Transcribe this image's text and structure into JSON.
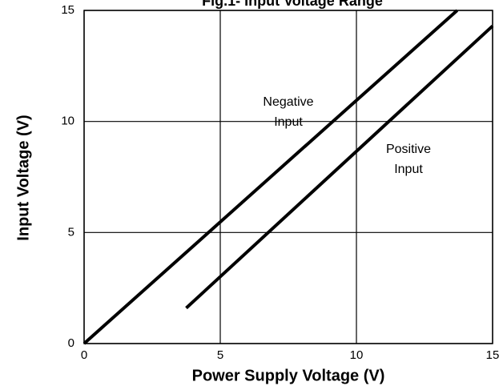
{
  "chart_data": {
    "type": "line",
    "title": "Fig.1- Input Voltage Range",
    "x_label": "Power Supply Voltage (V)",
    "y_label": "Input Voltage (V)",
    "xlim": [
      0,
      15
    ],
    "ylim": [
      0,
      15
    ],
    "xticks": [
      0,
      5,
      10,
      15
    ],
    "yticks": [
      0,
      5,
      10,
      15
    ],
    "grid": true,
    "series": [
      {
        "color": "#000000",
        "x": [
          0,
          13.7
        ],
        "values": [
          0,
          15
        ]
      },
      {
        "color": "#000000",
        "x": [
          3.75,
          15
        ],
        "values": [
          1.6,
          14.3
        ]
      }
    ],
    "annotations": [
      {
        "lines": [
          "Negative",
          "Input"
        ]
      },
      {
        "lines": [
          "Positive",
          "Input"
        ]
      }
    ]
  }
}
